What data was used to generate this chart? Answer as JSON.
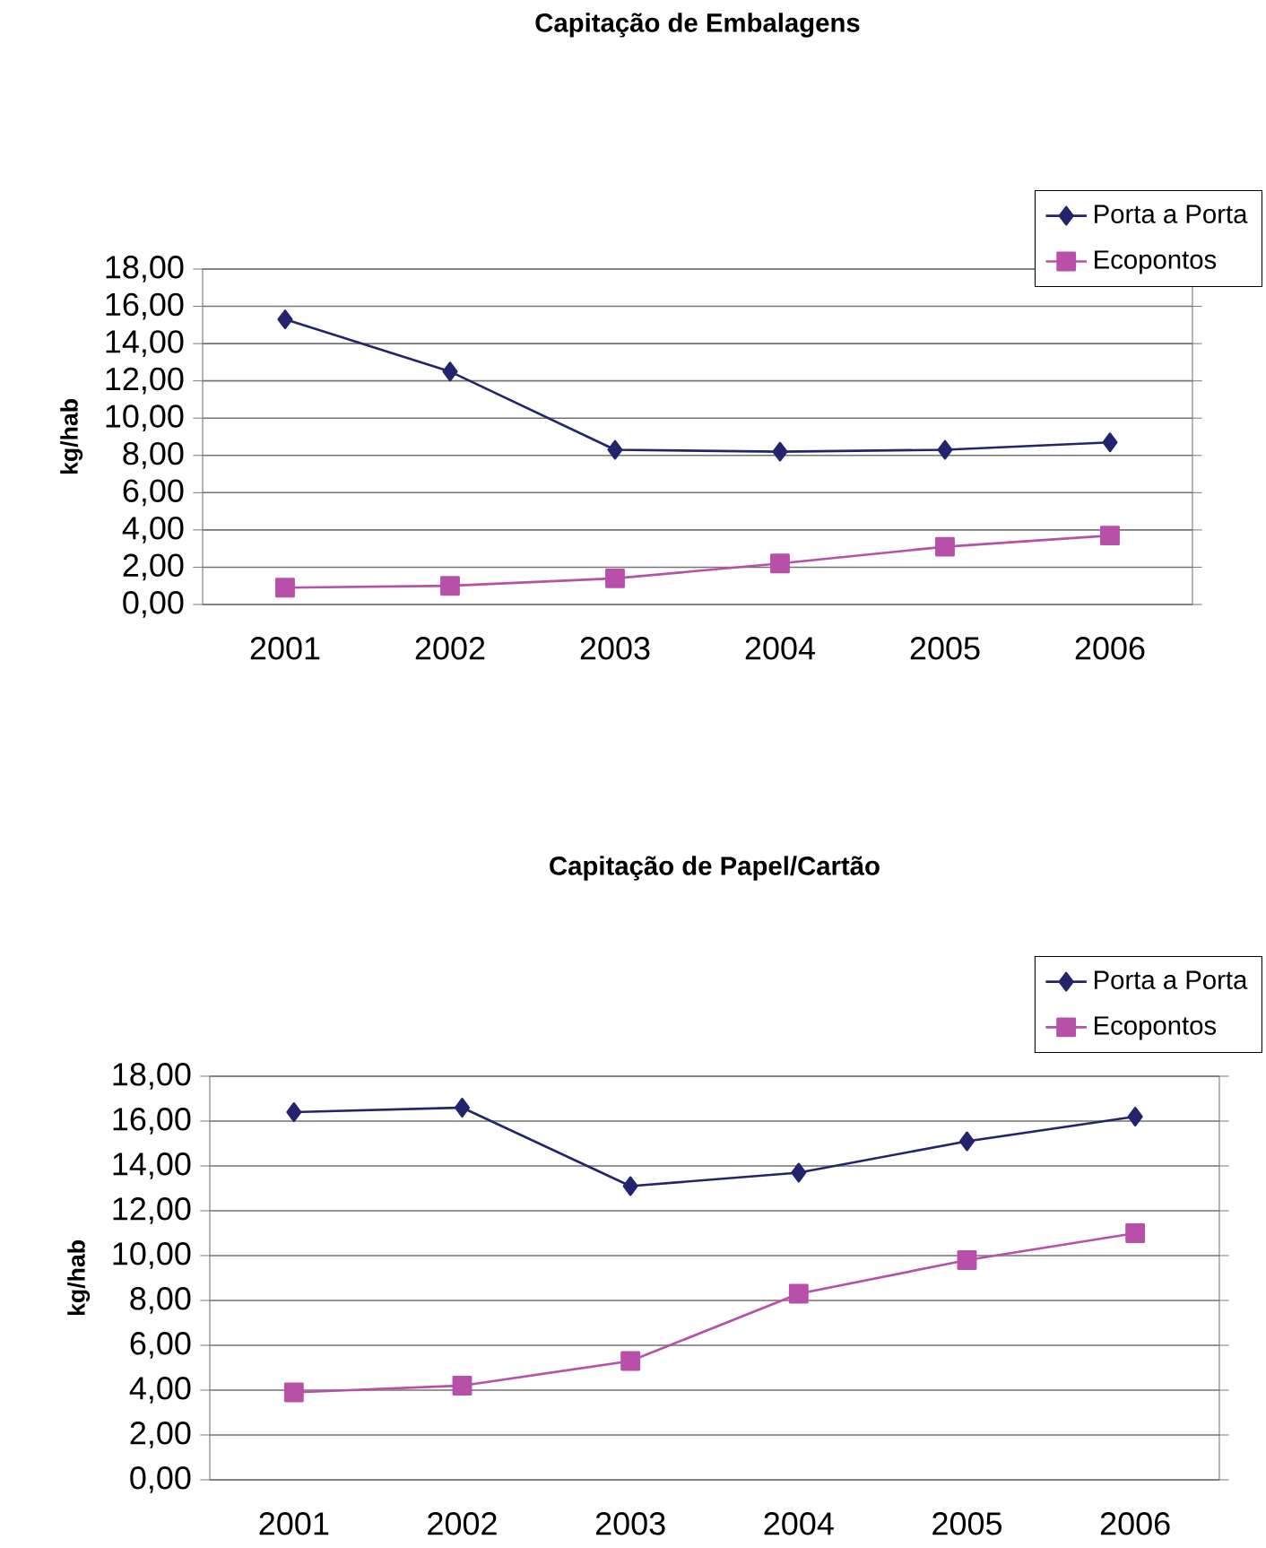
{
  "chart_data": [
    {
      "type": "line",
      "title": "Capitação de Embalagens",
      "ylabel": "kg/hab",
      "categories": [
        "2001",
        "2002",
        "2003",
        "2004",
        "2005",
        "2006"
      ],
      "series": [
        {
          "name": "Porta a Porta",
          "color": "#24246e",
          "marker": "diamond",
          "values": [
            15.3,
            12.5,
            8.3,
            8.2,
            8.3,
            8.7
          ]
        },
        {
          "name": "Ecopontos",
          "color": "#b84fa8",
          "marker": "square",
          "values": [
            0.9,
            1.0,
            1.4,
            2.2,
            3.1,
            3.7
          ]
        }
      ],
      "ylim": [
        0,
        18
      ],
      "yticks": [
        {
          "value": 0,
          "label": "0,00"
        },
        {
          "value": 2,
          "label": "2,00"
        },
        {
          "value": 4,
          "label": "4,00"
        },
        {
          "value": 6,
          "label": "6,00"
        },
        {
          "value": 8,
          "label": "8,00"
        },
        {
          "value": 10,
          "label": "10,00"
        },
        {
          "value": 12,
          "label": "12,00"
        },
        {
          "value": 14,
          "label": "14,00"
        },
        {
          "value": 16,
          "label": "16,00"
        },
        {
          "value": 18,
          "label": "18,00"
        }
      ],
      "grid": "y",
      "legend": "top right"
    },
    {
      "type": "line",
      "title": "Capitação de Papel/Cartão",
      "ylabel": "kg/hab",
      "categories": [
        "2001",
        "2002",
        "2003",
        "2004",
        "2005",
        "2006"
      ],
      "series": [
        {
          "name": "Porta a Porta",
          "color": "#24246e",
          "marker": "diamond",
          "values": [
            16.4,
            16.6,
            13.1,
            13.7,
            15.1,
            16.2
          ]
        },
        {
          "name": "Ecopontos",
          "color": "#b84fa8",
          "marker": "square",
          "values": [
            3.9,
            4.2,
            5.3,
            8.3,
            9.8,
            11.0
          ]
        }
      ],
      "ylim": [
        0,
        18
      ],
      "yticks": [
        {
          "value": 0,
          "label": "0,00"
        },
        {
          "value": 2,
          "label": "2,00"
        },
        {
          "value": 4,
          "label": "4,00"
        },
        {
          "value": 6,
          "label": "6,00"
        },
        {
          "value": 8,
          "label": "8,00"
        },
        {
          "value": 10,
          "label": "10,00"
        },
        {
          "value": 12,
          "label": "12,00"
        },
        {
          "value": 14,
          "label": "14,00"
        },
        {
          "value": 16,
          "label": "16,00"
        },
        {
          "value": 18,
          "label": "18,00"
        }
      ],
      "grid": "y",
      "legend": "top right"
    }
  ]
}
